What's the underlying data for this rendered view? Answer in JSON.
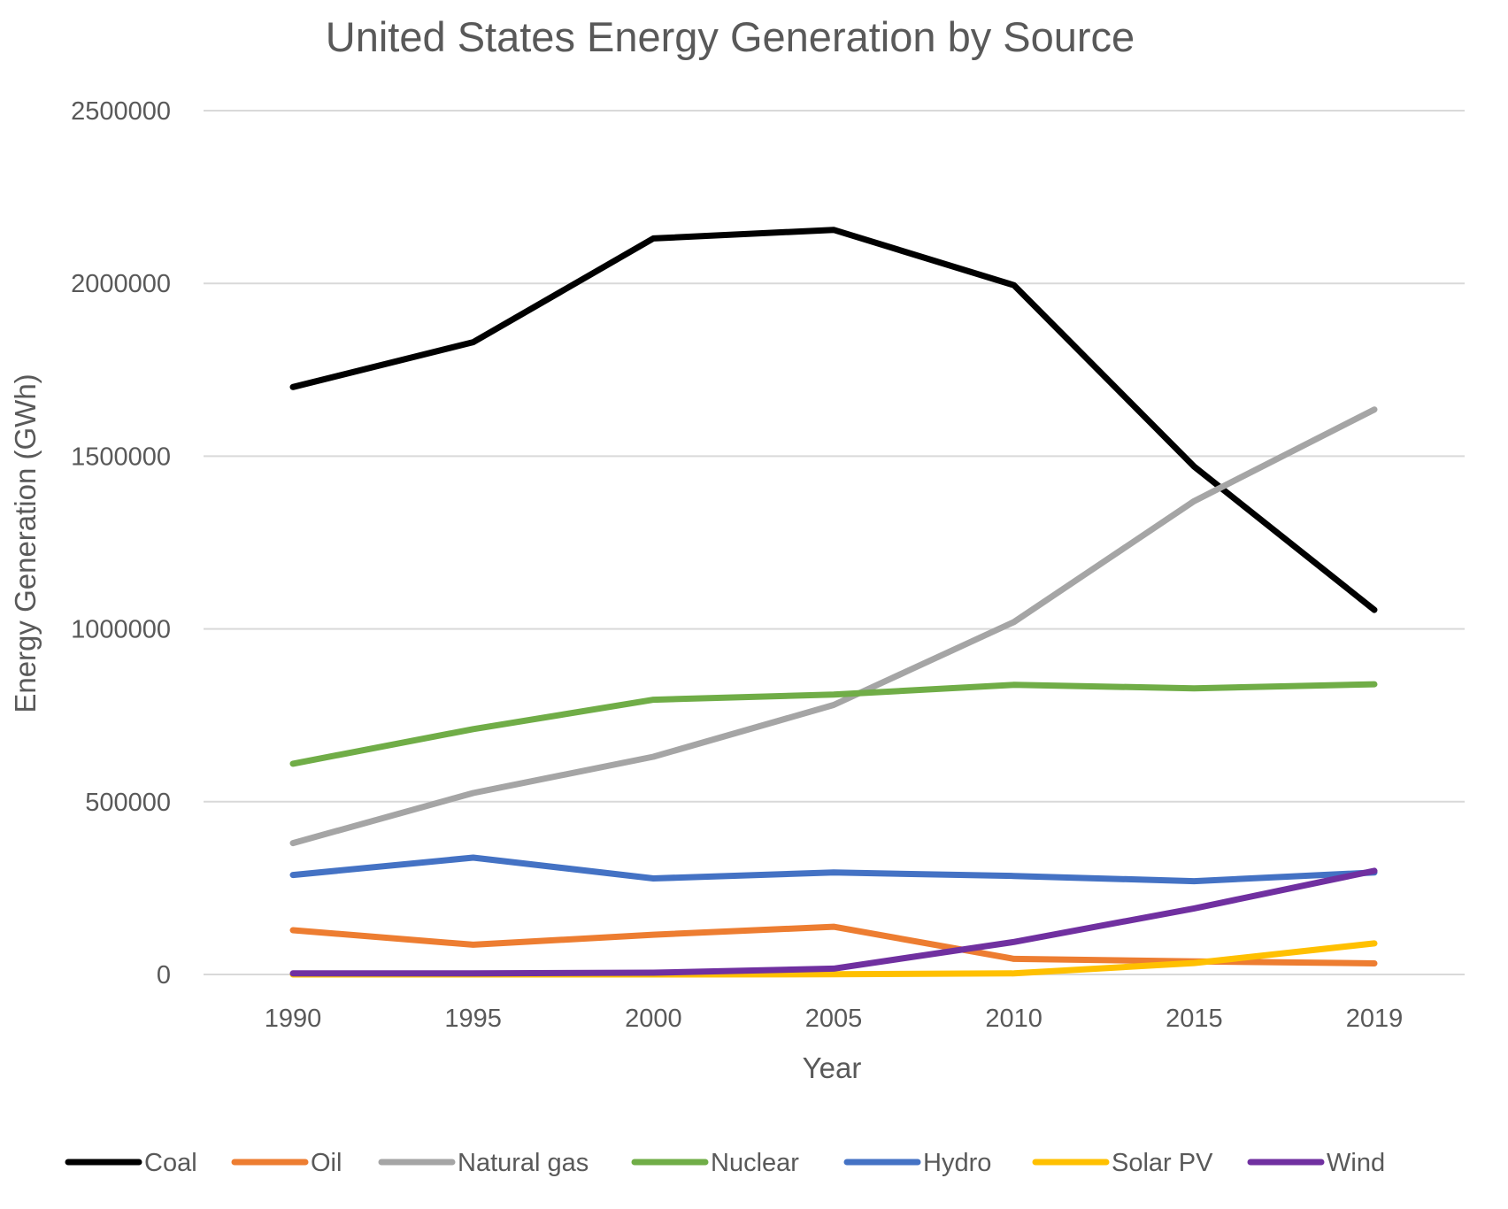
{
  "chart_data": {
    "type": "line",
    "title": "United States Energy Generation by Source",
    "xlabel": "Year",
    "ylabel": "Energy Generation (GWh)",
    "ylim": [
      0,
      2500000
    ],
    "yticks": [
      "0",
      "500000",
      "1000000",
      "1500000",
      "2000000",
      "2500000"
    ],
    "ytick_values": [
      0,
      500000,
      1000000,
      1500000,
      2000000,
      2500000
    ],
    "categories": [
      "1990",
      "1995",
      "2000",
      "2005",
      "2010",
      "2015",
      "2019"
    ],
    "grid": true,
    "legend_position": "bottom",
    "series": [
      {
        "name": "Coal",
        "color": "#000000",
        "values": [
          1700000,
          1830000,
          2130000,
          2155000,
          1995000,
          1470000,
          1055000
        ]
      },
      {
        "name": "Oil",
        "color": "#ED7D31",
        "values": [
          128000,
          86000,
          115000,
          138000,
          45000,
          38000,
          32000
        ]
      },
      {
        "name": "Natural gas",
        "color": "#A5A5A5",
        "values": [
          380000,
          525000,
          630000,
          780000,
          1020000,
          1370000,
          1635000
        ]
      },
      {
        "name": "Nuclear",
        "color": "#70AD47",
        "values": [
          610000,
          710000,
          795000,
          810000,
          838000,
          828000,
          840000
        ]
      },
      {
        "name": "Hydro",
        "color": "#4472C4",
        "values": [
          288000,
          338000,
          278000,
          295000,
          285000,
          270000,
          295000
        ]
      },
      {
        "name": "Solar PV",
        "color": "#FFC000",
        "values": [
          0,
          0,
          0,
          500,
          3000,
          33000,
          90000
        ]
      },
      {
        "name": "Wind",
        "color": "#7030A0",
        "values": [
          3000,
          3000,
          5000,
          17000,
          94000,
          191000,
          300000
        ]
      }
    ]
  }
}
